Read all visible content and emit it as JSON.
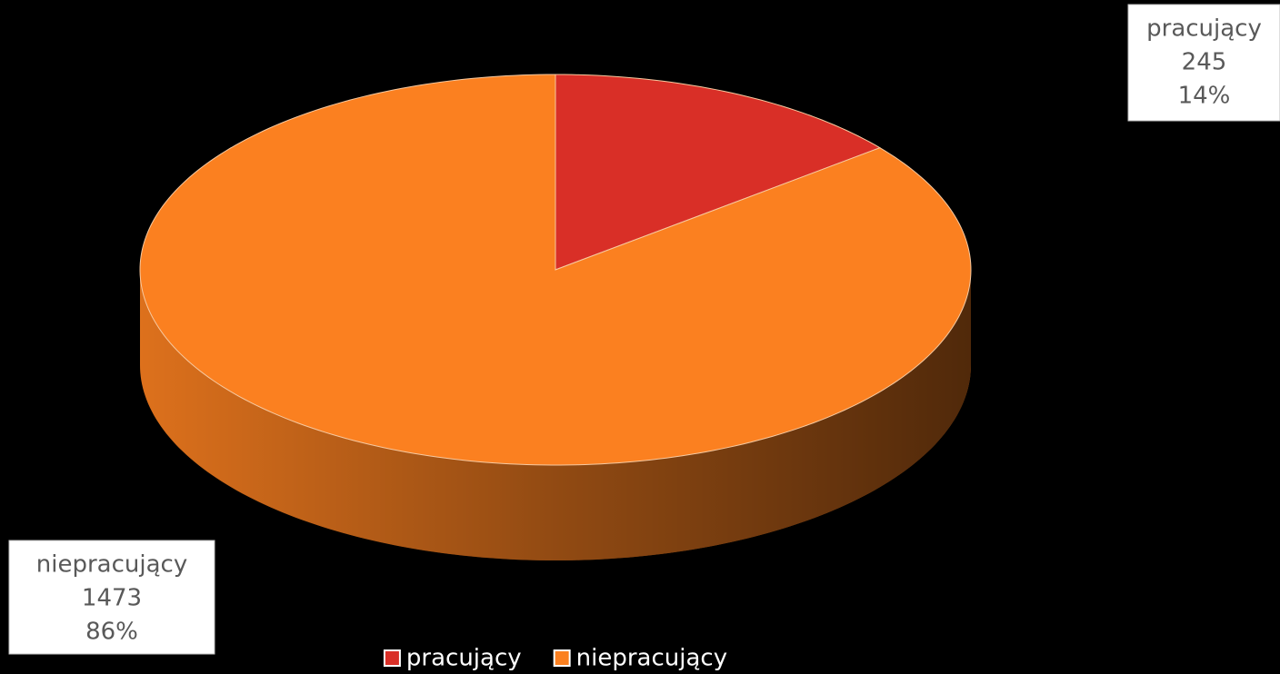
{
  "chart_data": {
    "type": "pie3d",
    "categories": [
      "pracujący",
      "niepracujący"
    ],
    "values": [
      245,
      1473
    ],
    "percent_labels": [
      "14%",
      "86%"
    ],
    "colors": [
      "#d92f27",
      "#fb8020"
    ],
    "legend": "bottom"
  }
}
